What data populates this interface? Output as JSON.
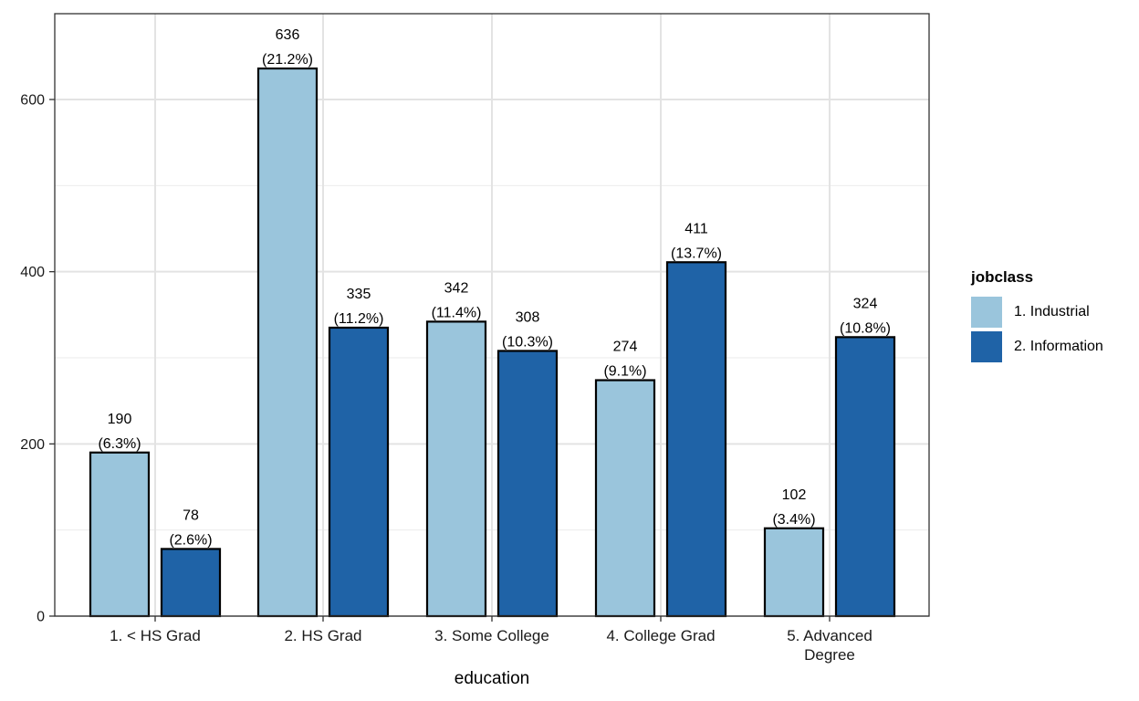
{
  "chart_data": {
    "type": "bar",
    "xlabel": "education",
    "ylabel": "",
    "ylim": [
      0,
      700
    ],
    "yticks": [
      0,
      200,
      400,
      600
    ],
    "grid": true,
    "legend_position": "right",
    "legend_title": "jobclass",
    "categories": [
      [
        "1. < HS Grad"
      ],
      [
        "2. HS Grad"
      ],
      [
        "3. Some College"
      ],
      [
        "4. College Grad"
      ],
      [
        "5. Advanced",
        "Degree"
      ]
    ],
    "series": [
      {
        "name": "1. Industrial",
        "color": "#9ac5dc",
        "values": [
          190,
          636,
          342,
          274,
          102
        ],
        "labels": [
          "(6.3%)",
          "(21.2%)",
          "(11.4%)",
          "(9.1%)",
          "(3.4%)"
        ]
      },
      {
        "name": "2. Information",
        "color": "#1f63a7",
        "values": [
          78,
          335,
          308,
          411,
          324
        ],
        "labels": [
          "(2.6%)",
          "(11.2%)",
          "(10.3%)",
          "(13.7%)",
          "(10.8%)"
        ]
      }
    ]
  }
}
